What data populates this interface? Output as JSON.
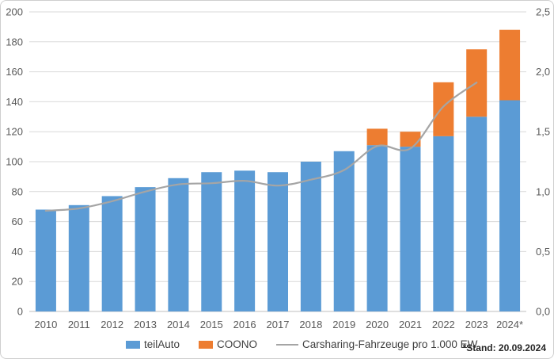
{
  "chart_data": {
    "type": "bar",
    "subtype": "stacked-bars-with-line-combo",
    "categories": [
      "2010",
      "2011",
      "2012",
      "2013",
      "2014",
      "2015",
      "2016",
      "2017",
      "2018",
      "2019",
      "2020",
      "2021",
      "2022",
      "2023",
      "2024*"
    ],
    "series": [
      {
        "name": "teilAuto",
        "type": "bar",
        "color": "#5B9BD5",
        "axis": "left",
        "values": [
          68,
          71,
          77,
          83,
          89,
          93,
          94,
          93,
          100,
          107,
          111,
          110,
          117,
          130,
          141
        ]
      },
      {
        "name": "COONO",
        "type": "bar",
        "color": "#ED7D31",
        "axis": "left",
        "values": [
          0,
          0,
          0,
          0,
          0,
          0,
          0,
          0,
          0,
          0,
          11,
          10,
          36,
          45,
          47
        ]
      },
      {
        "name": "Carsharing-Fahrzeuge pro 1.000 EW",
        "type": "line",
        "color": "#A5A5A5",
        "axis": "right",
        "values": [
          0.84,
          0.86,
          0.92,
          1.0,
          1.06,
          1.07,
          1.09,
          1.05,
          1.1,
          1.18,
          1.38,
          1.36,
          1.71,
          1.91,
          null
        ]
      }
    ],
    "stacked_totals": [
      68,
      71,
      77,
      83,
      89,
      93,
      94,
      93,
      100,
      107,
      122,
      120,
      153,
      175,
      188
    ],
    "title": "",
    "xlabel": "",
    "ylabel": "",
    "left_axis": {
      "min": 0,
      "max": 200,
      "step": 20,
      "ticks": [
        0,
        20,
        40,
        60,
        80,
        100,
        120,
        140,
        160,
        180,
        200
      ],
      "tick_labels": [
        "0",
        "20",
        "40",
        "60",
        "80",
        "100",
        "120",
        "140",
        "160",
        "180",
        "200"
      ]
    },
    "right_axis": {
      "min": 0,
      "max": 2.5,
      "step": 0.5,
      "ticks": [
        0,
        0.5,
        1.0,
        1.5,
        2.0,
        2.5
      ],
      "tick_labels": [
        "0,0",
        "0,5",
        "1,0",
        "1,5",
        "2,0",
        "2,5"
      ]
    },
    "grid": true,
    "legend_position": "bottom",
    "colors": {
      "grid_line": "#D9D9D9",
      "baseline": "#BFBFBF",
      "axis_text": "#595959",
      "bar_blue": "#5B9BD5",
      "bar_orange": "#ED7D31",
      "line_gray": "#A5A5A5"
    }
  },
  "legend": {
    "items": [
      {
        "label": "teilAuto",
        "marker": "rect",
        "color": "#5B9BD5"
      },
      {
        "label": "COONO",
        "marker": "rect",
        "color": "#ED7D31"
      },
      {
        "label": "Carsharing-Fahrzeuge pro 1.000 EW",
        "marker": "line",
        "color": "#A5A5A5"
      }
    ]
  },
  "footnote": "*Stand: 20.09.2024"
}
